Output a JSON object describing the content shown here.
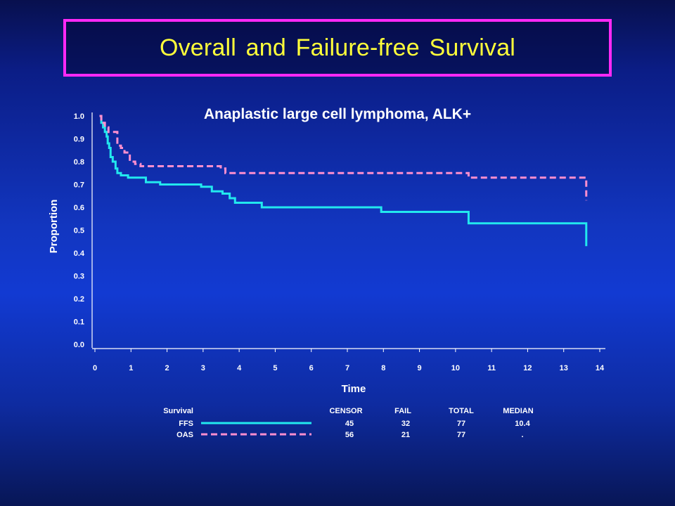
{
  "slide": {
    "title": "Overall and Failure-free Survival"
  },
  "colors": {
    "title_text": "#ffff3a",
    "title_border": "#ff29f6",
    "ffs_line": "#22e8ee",
    "oas_line": "#ff8fcf",
    "axis": "#ffffff"
  },
  "chart_data": {
    "type": "line",
    "title": "Anaplastic large cell lymphoma, ALK+",
    "xlabel": "Time",
    "ylabel": "Proportion",
    "xlim": [
      0,
      14
    ],
    "ylim": [
      0.0,
      1.0
    ],
    "x_ticks": [
      "0",
      "1",
      "2",
      "3",
      "4",
      "5",
      "6",
      "7",
      "8",
      "9",
      "10",
      "11",
      "12",
      "13",
      "14"
    ],
    "y_ticks": [
      "0.0",
      "0.1",
      "0.2",
      "0.3",
      "0.4",
      "0.5",
      "0.6",
      "0.7",
      "0.8",
      "0.9",
      "1.0"
    ],
    "series": [
      {
        "name": "FFS",
        "style": "solid",
        "color": "#22e8ee",
        "x": [
          0.05,
          0.1,
          0.15,
          0.2,
          0.25,
          0.28,
          0.32,
          0.36,
          0.42,
          0.5,
          0.55,
          0.65,
          0.85,
          1.35,
          1.75,
          2.9,
          3.2,
          3.5,
          3.7,
          3.85,
          4.6,
          7.95,
          10.4,
          13.7
        ],
        "y": [
          1.0,
          0.97,
          0.95,
          0.93,
          0.91,
          0.88,
          0.86,
          0.82,
          0.8,
          0.77,
          0.75,
          0.74,
          0.73,
          0.71,
          0.7,
          0.69,
          0.67,
          0.66,
          0.64,
          0.62,
          0.6,
          0.58,
          0.53,
          0.43
        ]
      },
      {
        "name": "OAS",
        "style": "dashed",
        "color": "#ff8fcf",
        "x": [
          0.05,
          0.1,
          0.2,
          0.3,
          0.55,
          0.65,
          0.75,
          0.9,
          1.05,
          1.2,
          3.45,
          3.58,
          10.4,
          13.7
        ],
        "y": [
          1.0,
          0.97,
          0.95,
          0.93,
          0.87,
          0.86,
          0.84,
          0.8,
          0.79,
          0.78,
          0.77,
          0.75,
          0.73,
          0.63
        ]
      }
    ],
    "legend": {
      "header": [
        "Survival",
        "CENSOR",
        "FAIL",
        "TOTAL",
        "MEDIAN"
      ],
      "rows": [
        {
          "label": "FFS",
          "censor": "45",
          "fail": "32",
          "total": "77",
          "median": "10.4"
        },
        {
          "label": "OAS",
          "censor": "56",
          "fail": "21",
          "total": "77",
          "median": "."
        }
      ]
    }
  }
}
